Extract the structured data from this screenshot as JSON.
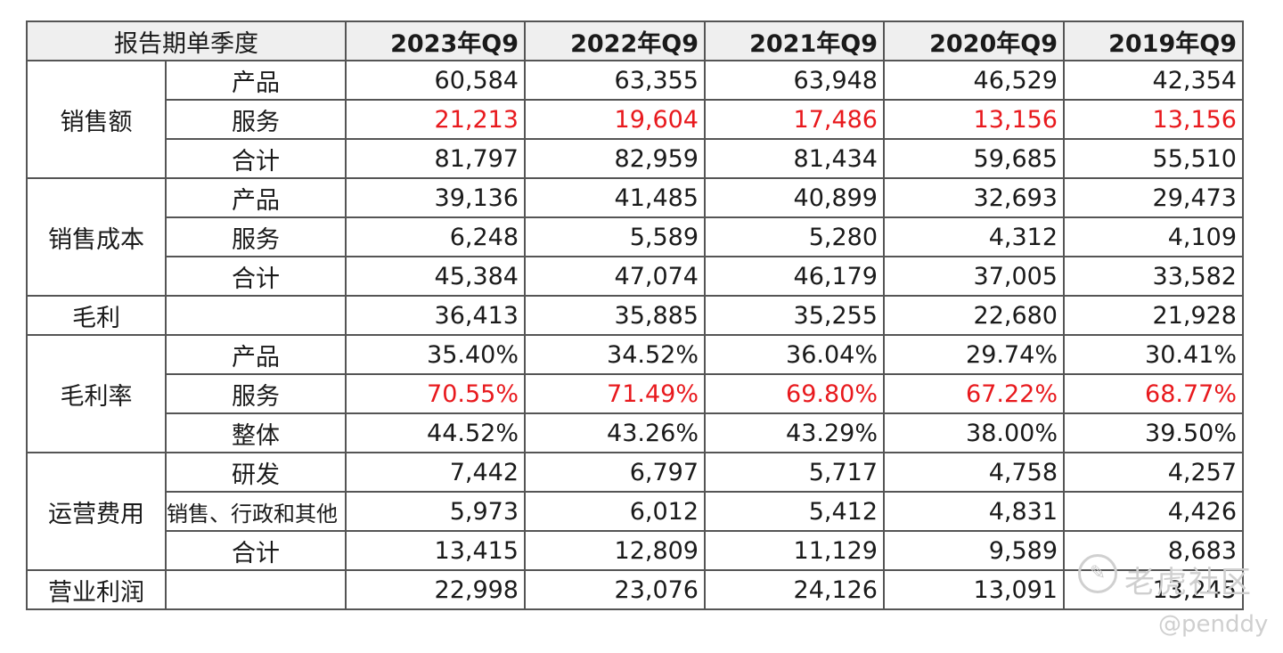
{
  "table": {
    "corner_label": "报告期单季度",
    "columns": [
      "2023年Q9",
      "2022年Q9",
      "2021年Q9",
      "2020年Q9",
      "2019年Q9"
    ],
    "groups": [
      {
        "label": "销售额",
        "rows": [
          {
            "label": "产品",
            "values": [
              "60,584",
              "63,355",
              "63,948",
              "46,529",
              "42,354"
            ]
          },
          {
            "label": "服务",
            "values": [
              "21,213",
              "19,604",
              "17,486",
              "13,156",
              "13,156"
            ],
            "highlight": "#e8191d"
          },
          {
            "label": "合计",
            "values": [
              "81,797",
              "82,959",
              "81,434",
              "59,685",
              "55,510"
            ]
          }
        ]
      },
      {
        "label": "销售成本",
        "rows": [
          {
            "label": "产品",
            "values": [
              "39,136",
              "41,485",
              "40,899",
              "32,693",
              "29,473"
            ]
          },
          {
            "label": "服务",
            "values": [
              "6,248",
              "5,589",
              "5,280",
              "4,312",
              "4,109"
            ]
          },
          {
            "label": "合计",
            "values": [
              "45,384",
              "47,074",
              "46,179",
              "37,005",
              "33,582"
            ]
          }
        ]
      },
      {
        "label": "毛利",
        "rows": [
          {
            "label": "",
            "values": [
              "36,413",
              "35,885",
              "35,255",
              "22,680",
              "21,928"
            ]
          }
        ]
      },
      {
        "label": "毛利率",
        "rows": [
          {
            "label": "产品",
            "values": [
              "35.40%",
              "34.52%",
              "36.04%",
              "29.74%",
              "30.41%"
            ]
          },
          {
            "label": "服务",
            "values": [
              "70.55%",
              "71.49%",
              "69.80%",
              "67.22%",
              "68.77%"
            ],
            "highlight": "#e8191d"
          },
          {
            "label": "整体",
            "values": [
              "44.52%",
              "43.26%",
              "43.29%",
              "38.00%",
              "39.50%"
            ]
          }
        ]
      },
      {
        "label": "运营费用",
        "rows": [
          {
            "label": "研发",
            "values": [
              "7,442",
              "6,797",
              "5,717",
              "4,758",
              "4,257"
            ]
          },
          {
            "label": "销售、行政和其他",
            "values": [
              "5,973",
              "6,012",
              "5,412",
              "4,831",
              "4,426"
            ]
          },
          {
            "label": "合计",
            "values": [
              "13,415",
              "12,809",
              "11,129",
              "9,589",
              "8,683"
            ]
          }
        ]
      },
      {
        "label": "营业利润",
        "rows": [
          {
            "label": "",
            "values": [
              "22,998",
              "23,076",
              "24,126",
              "13,091",
              "13,245"
            ]
          }
        ]
      }
    ]
  },
  "watermark": {
    "brand": "老虎社区",
    "user": "@penddy",
    "logo_icon": "tiger-community-logo-icon"
  },
  "colors": {
    "header_bg": "#efefef",
    "highlight_red": "#e8191d",
    "border": "#555555"
  }
}
